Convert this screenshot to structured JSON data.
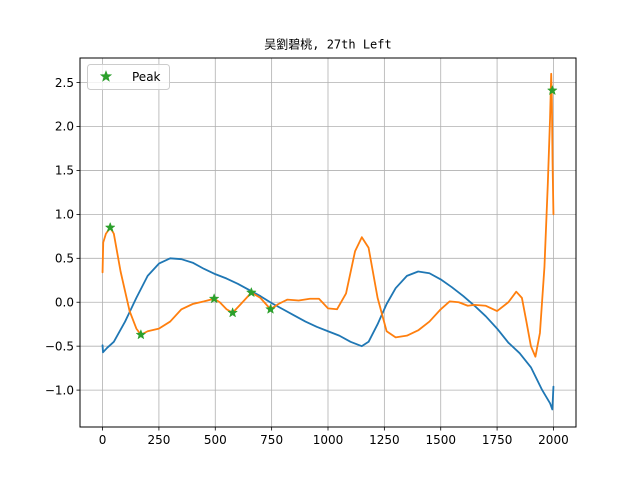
{
  "chart_data": {
    "type": "line",
    "title": "吴劉碧桃, 27th Left",
    "xlabel": "",
    "ylabel": "",
    "xlim": [
      -100,
      2100
    ],
    "ylim": [
      -1.42,
      2.78
    ],
    "xticks": [
      0,
      250,
      500,
      750,
      1000,
      1250,
      1500,
      1750,
      2000
    ],
    "xtick_labels": [
      "0",
      "250",
      "500",
      "750",
      "1000",
      "1250",
      "1500",
      "1750",
      "2000"
    ],
    "yticks": [
      -1.0,
      -0.5,
      0.0,
      0.5,
      1.0,
      1.5,
      2.0,
      2.5
    ],
    "ytick_labels": [
      "−1.0",
      "−0.5",
      "0.0",
      "0.5",
      "1.0",
      "1.5",
      "2.0",
      "2.5"
    ],
    "grid": true,
    "legend": {
      "position": "upper-left",
      "entries": [
        "Peak"
      ]
    },
    "series": [
      {
        "color": "#1f77b4",
        "points": [
          [
            0,
            -0.49
          ],
          [
            2,
            -0.57
          ],
          [
            20,
            -0.52
          ],
          [
            50,
            -0.45
          ],
          [
            100,
            -0.22
          ],
          [
            150,
            0.05
          ],
          [
            200,
            0.3
          ],
          [
            250,
            0.44
          ],
          [
            300,
            0.5
          ],
          [
            350,
            0.49
          ],
          [
            400,
            0.45
          ],
          [
            450,
            0.38
          ],
          [
            500,
            0.32
          ],
          [
            550,
            0.27
          ],
          [
            600,
            0.21
          ],
          [
            650,
            0.14
          ],
          [
            700,
            0.07
          ],
          [
            750,
            -0.01
          ],
          [
            800,
            -0.08
          ],
          [
            850,
            -0.15
          ],
          [
            900,
            -0.22
          ],
          [
            950,
            -0.28
          ],
          [
            1000,
            -0.33
          ],
          [
            1050,
            -0.38
          ],
          [
            1100,
            -0.45
          ],
          [
            1150,
            -0.5
          ],
          [
            1180,
            -0.45
          ],
          [
            1220,
            -0.25
          ],
          [
            1260,
            -0.02
          ],
          [
            1300,
            0.16
          ],
          [
            1350,
            0.3
          ],
          [
            1400,
            0.35
          ],
          [
            1450,
            0.33
          ],
          [
            1500,
            0.26
          ],
          [
            1550,
            0.17
          ],
          [
            1600,
            0.07
          ],
          [
            1650,
            -0.04
          ],
          [
            1700,
            -0.16
          ],
          [
            1750,
            -0.3
          ],
          [
            1800,
            -0.46
          ],
          [
            1850,
            -0.58
          ],
          [
            1900,
            -0.74
          ],
          [
            1950,
            -1.0
          ],
          [
            1985,
            -1.15
          ],
          [
            1995,
            -1.22
          ],
          [
            2000,
            -0.96
          ]
        ]
      },
      {
        "color": "#ff7f0e",
        "points": [
          [
            0,
            0.34
          ],
          [
            3,
            0.68
          ],
          [
            15,
            0.78
          ],
          [
            34,
            0.85
          ],
          [
            50,
            0.78
          ],
          [
            80,
            0.35
          ],
          [
            120,
            -0.1
          ],
          [
            150,
            -0.3
          ],
          [
            170,
            -0.37
          ],
          [
            200,
            -0.33
          ],
          [
            250,
            -0.3
          ],
          [
            300,
            -0.22
          ],
          [
            350,
            -0.08
          ],
          [
            400,
            -0.02
          ],
          [
            450,
            0.01
          ],
          [
            495,
            0.04
          ],
          [
            520,
            0.0
          ],
          [
            550,
            -0.08
          ],
          [
            577,
            -0.12
          ],
          [
            610,
            -0.03
          ],
          [
            660,
            0.11
          ],
          [
            700,
            0.05
          ],
          [
            745,
            -0.08
          ],
          [
            780,
            -0.02
          ],
          [
            820,
            0.03
          ],
          [
            870,
            0.02
          ],
          [
            920,
            0.04
          ],
          [
            960,
            0.04
          ],
          [
            1000,
            -0.07
          ],
          [
            1040,
            -0.08
          ],
          [
            1080,
            0.1
          ],
          [
            1120,
            0.58
          ],
          [
            1150,
            0.74
          ],
          [
            1180,
            0.62
          ],
          [
            1220,
            0.05
          ],
          [
            1260,
            -0.33
          ],
          [
            1300,
            -0.4
          ],
          [
            1350,
            -0.38
          ],
          [
            1400,
            -0.32
          ],
          [
            1450,
            -0.22
          ],
          [
            1500,
            -0.08
          ],
          [
            1540,
            0.01
          ],
          [
            1580,
            0.0
          ],
          [
            1620,
            -0.04
          ],
          [
            1650,
            -0.03
          ],
          [
            1700,
            -0.04
          ],
          [
            1750,
            -0.1
          ],
          [
            1800,
            0.0
          ],
          [
            1835,
            0.12
          ],
          [
            1860,
            0.05
          ],
          [
            1880,
            -0.22
          ],
          [
            1900,
            -0.5
          ],
          [
            1920,
            -0.62
          ],
          [
            1940,
            -0.35
          ],
          [
            1960,
            0.4
          ],
          [
            1975,
            1.35
          ],
          [
            1985,
            2.1
          ],
          [
            1990,
            2.6
          ],
          [
            1993,
            2.3
          ],
          [
            1996,
            1.6
          ],
          [
            2000,
            1.0
          ]
        ]
      }
    ],
    "markers": {
      "name": "Peak",
      "color": "#2ca02c",
      "symbol": "star",
      "points": [
        [
          34,
          0.85
        ],
        [
          170,
          -0.37
        ],
        [
          495,
          0.04
        ],
        [
          577,
          -0.12
        ],
        [
          660,
          0.11
        ],
        [
          745,
          -0.08
        ],
        [
          1995,
          2.41
        ]
      ]
    }
  }
}
